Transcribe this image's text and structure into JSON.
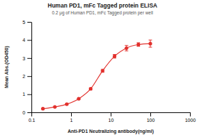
{
  "chart_data": {
    "type": "line",
    "title": "Human PD1, mFc Tagged protein ELISA",
    "subtitle": "0.2 μg of Human PD1, mFc Tagged protein per well",
    "x_label": "Anti-PD1 Neutralizing antibody(ng/ml)",
    "y_label": "Mean Abs.(OD450)",
    "x": [
      0.195,
      0.39,
      0.78,
      1.56,
      3.125,
      6.25,
      12.5,
      25,
      50,
      100
    ],
    "values": [
      0.2,
      0.3,
      0.45,
      0.75,
      1.3,
      2.3,
      3.1,
      3.55,
      3.75,
      3.8
    ],
    "errors": [
      0.02,
      0.02,
      0.03,
      0.03,
      0.05,
      0.08,
      0.1,
      0.15,
      0.1,
      0.2
    ],
    "color": "#e2312d",
    "marker": "circle",
    "line_style": "solid",
    "log": "x",
    "grid": false,
    "xlim": [
      0.1,
      1000
    ],
    "xticks": [
      0.1,
      1,
      10,
      100,
      1000
    ],
    "ylim": [
      0,
      5
    ],
    "yticks": [
      0,
      1,
      2,
      3,
      4,
      5
    ]
  }
}
